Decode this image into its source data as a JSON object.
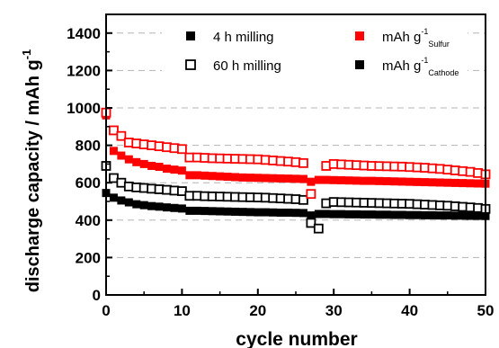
{
  "chart_data": {
    "type": "scatter",
    "xlabel": "cycle number",
    "ylabel": {
      "main": "discharge capacity / mAh g",
      "sup": "-1"
    },
    "xlim": [
      0,
      50
    ],
    "ylim": [
      0,
      1500
    ],
    "xticks": [
      "0",
      "10",
      "20",
      "30",
      "40",
      "50"
    ],
    "yticks": [
      "0",
      "200",
      "400",
      "600",
      "800",
      "1000",
      "1200",
      "1400"
    ],
    "grid": "dashed horizontal",
    "legend": {
      "placement": "top",
      "entries": [
        {
          "label": "4 h milling"
        },
        {
          "label": "60 h milling"
        },
        {
          "label": "mAh g",
          "sup": "-1",
          "sub": "Sulfur"
        },
        {
          "label": "mAh g",
          "sup": "-1",
          "sub": "Cathode"
        }
      ]
    },
    "x": [
      0,
      1,
      2,
      3,
      4,
      5,
      6,
      7,
      8,
      9,
      10,
      11,
      12,
      13,
      14,
      15,
      16,
      17,
      18,
      19,
      20,
      21,
      22,
      23,
      24,
      25,
      26,
      27,
      28,
      29,
      30,
      31,
      32,
      33,
      34,
      35,
      36,
      37,
      38,
      39,
      40,
      41,
      42,
      43,
      44,
      45,
      46,
      47,
      48,
      49,
      50
    ],
    "series": [
      {
        "name": "4 h milling",
        "marker": "filled-square",
        "sulfur_color": "#ff0000",
        "cathode_color": "#000000",
        "sulfur": [
          960,
          770,
          745,
          725,
          710,
          700,
          690,
          685,
          675,
          670,
          665,
          640,
          640,
          638,
          636,
          634,
          632,
          630,
          628,
          627,
          626,
          625,
          624,
          623,
          622,
          621,
          620,
          605,
          615,
          615,
          614,
          613,
          612,
          611,
          610,
          610,
          609,
          608,
          607,
          606,
          605,
          604,
          603,
          602,
          601,
          600,
          599,
          598,
          597,
          596,
          595
        ],
        "cathode": [
          545,
          520,
          505,
          495,
          485,
          480,
          475,
          472,
          468,
          465,
          462,
          450,
          450,
          449,
          448,
          447,
          446,
          445,
          444,
          443,
          442,
          442,
          441,
          440,
          440,
          439,
          438,
          425,
          433,
          433,
          432,
          432,
          431,
          431,
          430,
          430,
          429,
          429,
          428,
          428,
          427,
          427,
          426,
          426,
          425,
          425,
          424,
          424,
          423,
          423,
          422
        ]
      },
      {
        "name": "60 h milling",
        "marker": "open-square",
        "sulfur_color": "#ff0000",
        "cathode_color": "#000000",
        "sulfur": [
          975,
          880,
          850,
          815,
          810,
          805,
          800,
          795,
          790,
          785,
          780,
          735,
          735,
          733,
          731,
          730,
          729,
          728,
          727,
          726,
          725,
          722,
          719,
          716,
          713,
          710,
          705,
          540,
          null,
          690,
          700,
          698,
          696,
          694,
          692,
          690,
          689,
          688,
          687,
          686,
          684,
          682,
          680,
          677,
          674,
          670,
          666,
          662,
          658,
          652,
          645
        ],
        "cathode": [
          690,
          625,
          600,
          580,
          575,
          572,
          568,
          565,
          562,
          558,
          555,
          530,
          530,
          528,
          527,
          526,
          525,
          524,
          523,
          522,
          521,
          520,
          518,
          516,
          514,
          512,
          508,
          385,
          355,
          490,
          497,
          496,
          495,
          494,
          493,
          492,
          491,
          490,
          489,
          488,
          487,
          485,
          483,
          481,
          479,
          477,
          474,
          471,
          468,
          465,
          460
        ]
      }
    ]
  }
}
